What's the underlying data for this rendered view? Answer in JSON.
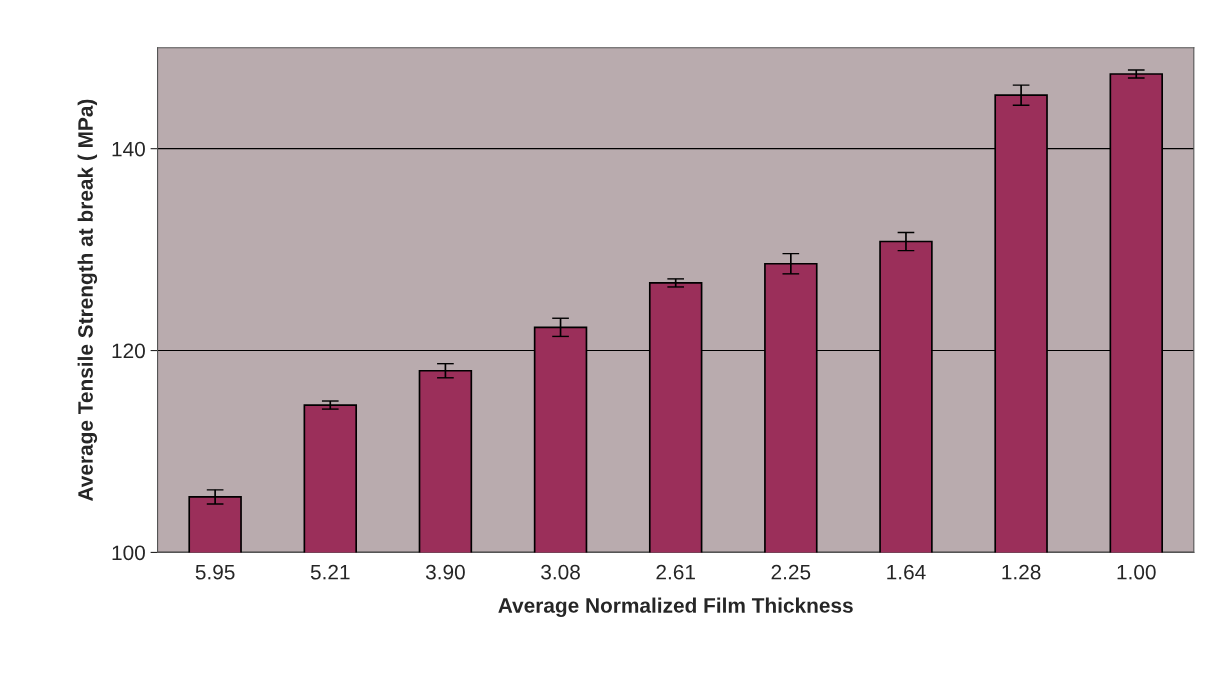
{
  "chart_data": {
    "type": "bar",
    "xlabel": "Average Normalized Film Thickness",
    "ylabel": "Average Tensile Strength at break ( MPa)",
    "categories": [
      "5.95",
      "5.21",
      "3.90",
      "3.08",
      "2.61",
      "2.25",
      "1.64",
      "1.28",
      "1.00"
    ],
    "values": [
      105.5,
      114.6,
      118.0,
      122.3,
      126.7,
      128.6,
      130.8,
      145.3,
      147.4
    ],
    "errors": [
      0.7,
      0.4,
      0.7,
      0.9,
      0.4,
      1.0,
      0.9,
      1.0,
      0.4
    ],
    "color": "#9b2f5a",
    "ylim": [
      100,
      150
    ],
    "yticks": [
      100,
      120,
      140
    ],
    "grid": "y",
    "legend": false
  }
}
